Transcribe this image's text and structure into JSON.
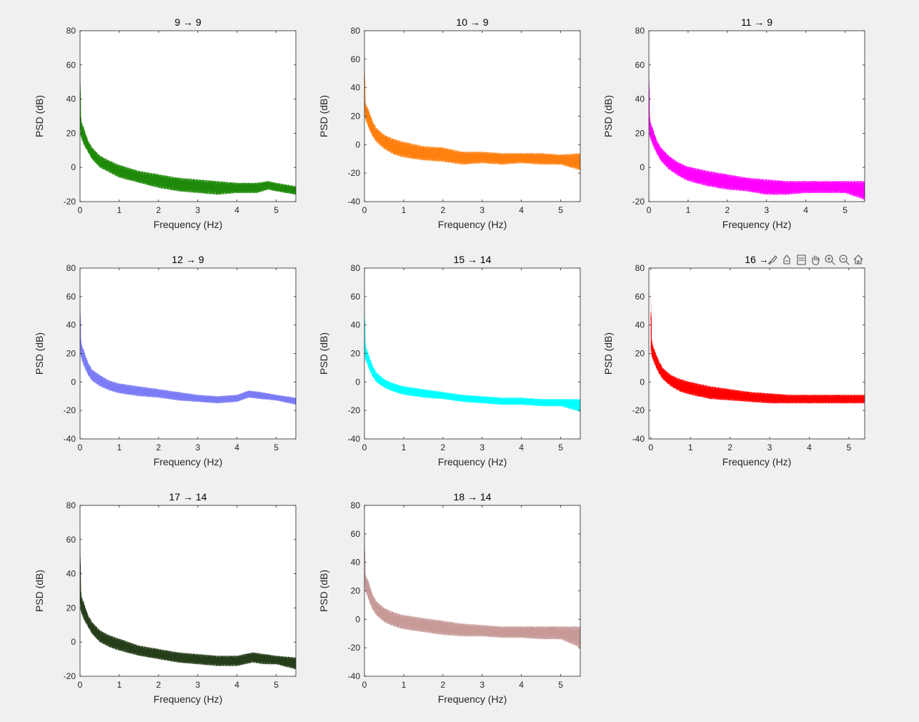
{
  "figure": {
    "background": "#f0f0f0",
    "axes_color": "#262626",
    "toolbar_icons": [
      "brush-icon",
      "data-tips-icon",
      "legend-icon",
      "pan-hand-icon",
      "zoom-in-icon",
      "zoom-out-icon",
      "home-icon"
    ]
  },
  "chart_data": [
    {
      "type": "line",
      "title": "9 → 9",
      "xlabel": "Frequency (Hz)",
      "ylabel": "PSD (dB)",
      "xlim": [
        0,
        5.5
      ],
      "ylim": [
        -20,
        80
      ],
      "xticks": [
        0,
        1,
        2,
        3,
        4,
        5
      ],
      "yticks": [
        -20,
        0,
        20,
        40,
        60,
        80
      ],
      "color": "#1f8a0a",
      "series": [
        {
          "x": [
            0,
            0.02,
            0.05,
            0.1,
            0.2,
            0.3,
            0.5,
            0.75,
            1.0,
            1.5,
            2.0,
            2.5,
            3.0,
            3.5,
            4.0,
            4.5,
            4.8,
            5.0,
            5.5
          ],
          "upper": [
            66,
            30,
            26,
            23,
            16,
            12,
            7,
            4,
            1.5,
            -2,
            -4,
            -6,
            -7,
            -8,
            -9,
            -9,
            -8,
            -9,
            -11
          ],
          "lower": [
            20,
            18,
            16,
            13,
            9,
            5,
            0,
            -3,
            -6,
            -9,
            -12,
            -14,
            -15,
            -16,
            -15,
            -15,
            -13,
            -14,
            -16
          ]
        }
      ]
    },
    {
      "type": "line",
      "title": "10 → 9",
      "xlabel": "Frequency (Hz)",
      "ylabel": "PSD (dB)",
      "xlim": [
        0,
        5.5
      ],
      "ylim": [
        -40,
        80
      ],
      "xticks": [
        0,
        1,
        2,
        3,
        4,
        5
      ],
      "yticks": [
        -40,
        -20,
        0,
        20,
        40,
        60,
        80
      ],
      "color": "#ff7f0e",
      "series": [
        {
          "x": [
            0,
            0.02,
            0.05,
            0.1,
            0.2,
            0.3,
            0.5,
            0.75,
            1.0,
            1.5,
            2.0,
            2.5,
            3.0,
            3.5,
            4.0,
            4.5,
            5.0,
            5.5
          ],
          "upper": [
            69,
            30,
            28,
            25,
            17,
            12,
            7,
            4,
            2,
            -1,
            -2,
            -5,
            -5,
            -6,
            -6,
            -6,
            -7,
            -6
          ],
          "lower": [
            20,
            18,
            16,
            12,
            6,
            2,
            -3,
            -7,
            -9,
            -11,
            -12,
            -14,
            -13,
            -14,
            -13,
            -14,
            -14,
            -18
          ]
        }
      ]
    },
    {
      "type": "line",
      "title": "11 → 9",
      "xlabel": "Frequency (Hz)",
      "ylabel": "PSD (dB)",
      "xlim": [
        0,
        5.5
      ],
      "ylim": [
        -20,
        80
      ],
      "xticks": [
        0,
        1,
        2,
        3,
        4,
        5
      ],
      "yticks": [
        -20,
        0,
        20,
        40,
        60,
        80
      ],
      "color": "#ff00ff",
      "series": [
        {
          "x": [
            0,
            0.02,
            0.05,
            0.1,
            0.2,
            0.3,
            0.5,
            0.75,
            1.0,
            1.5,
            2.0,
            2.5,
            3.0,
            3.5,
            4.0,
            4.5,
            5.0,
            5.5
          ],
          "upper": [
            68,
            30,
            26,
            23,
            16,
            12,
            7,
            3,
            0.5,
            -2,
            -4,
            -6,
            -7,
            -8,
            -8,
            -8,
            -8,
            -8
          ],
          "lower": [
            20,
            18,
            16,
            13,
            8,
            4,
            -1,
            -5,
            -8,
            -11,
            -13,
            -14,
            -16,
            -16,
            -15,
            -15,
            -15,
            -19
          ]
        }
      ]
    },
    {
      "type": "line",
      "title": "12 → 9",
      "xlabel": "Frequency (Hz)",
      "ylabel": "PSD (dB)",
      "xlim": [
        0,
        5.5
      ],
      "ylim": [
        -40,
        80
      ],
      "xticks": [
        0,
        1,
        2,
        3,
        4,
        5
      ],
      "yticks": [
        -40,
        -20,
        0,
        20,
        40,
        60,
        80
      ],
      "color": "#7b7bf5",
      "series": [
        {
          "x": [
            0,
            0.02,
            0.05,
            0.1,
            0.2,
            0.3,
            0.5,
            0.75,
            1.0,
            1.5,
            2.0,
            2.5,
            3.0,
            3.5,
            4.0,
            4.3,
            4.6,
            5.0,
            5.5
          ],
          "upper": [
            65,
            30,
            26,
            22,
            14,
            9,
            5,
            1,
            -1,
            -3,
            -5,
            -7,
            -9,
            -10,
            -9,
            -6,
            -7,
            -9,
            -11
          ],
          "lower": [
            20,
            18,
            15,
            11,
            5,
            1,
            -3,
            -6,
            -8,
            -10,
            -11,
            -13,
            -14,
            -15,
            -14,
            -11,
            -12,
            -13,
            -16
          ]
        }
      ]
    },
    {
      "type": "line",
      "title": "15 → 14",
      "xlabel": "Frequency (Hz)",
      "ylabel": "PSD (dB)",
      "xlim": [
        0,
        5.5
      ],
      "ylim": [
        -40,
        80
      ],
      "xticks": [
        0,
        1,
        2,
        3,
        4,
        5
      ],
      "yticks": [
        -40,
        -20,
        0,
        20,
        40,
        60,
        80
      ],
      "color": "#00ffff",
      "series": [
        {
          "x": [
            0,
            0.02,
            0.05,
            0.1,
            0.2,
            0.3,
            0.5,
            0.75,
            1.0,
            1.5,
            2.0,
            2.5,
            3.0,
            3.5,
            4.0,
            4.5,
            5.0,
            5.5
          ],
          "upper": [
            63,
            28,
            24,
            20,
            12,
            7,
            2,
            -1,
            -3,
            -5,
            -7,
            -9,
            -10,
            -11,
            -11,
            -12,
            -12,
            -12
          ],
          "lower": [
            18,
            16,
            14,
            10,
            4,
            0,
            -4,
            -7,
            -9,
            -11,
            -12,
            -14,
            -15,
            -16,
            -16,
            -17,
            -17,
            -21
          ]
        }
      ]
    },
    {
      "type": "line",
      "title": "16 →",
      "xlabel": "Frequency (Hz)",
      "ylabel": "PSD (dB)",
      "xlim": [
        -0.05,
        5.4
      ],
      "ylim": [
        -40,
        80
      ],
      "xticks": [
        0,
        1,
        2,
        3,
        4,
        5
      ],
      "yticks": [
        -40,
        -20,
        0,
        20,
        40,
        60,
        80
      ],
      "color": "#ff0000",
      "series": [
        {
          "x": [
            0,
            0.02,
            0.05,
            0.1,
            0.2,
            0.3,
            0.5,
            0.75,
            1.0,
            1.5,
            2.0,
            2.5,
            3.0,
            3.5,
            4.0,
            4.5,
            5.0,
            5.4
          ],
          "upper": [
            67,
            30,
            26,
            22,
            15,
            10,
            5,
            2,
            0,
            -3,
            -5,
            -7,
            -8,
            -9,
            -9,
            -9,
            -9,
            -9
          ],
          "lower": [
            20,
            18,
            16,
            12,
            6,
            2,
            -3,
            -7,
            -9,
            -12,
            -13,
            -14,
            -15,
            -15,
            -15,
            -15,
            -15,
            -15
          ]
        }
      ]
    },
    {
      "type": "line",
      "title": "17 → 14",
      "xlabel": "Frequency (Hz)",
      "ylabel": "PSD (dB)",
      "xlim": [
        0,
        5.5
      ],
      "ylim": [
        -20,
        80
      ],
      "xticks": [
        0,
        1,
        2,
        3,
        4,
        5
      ],
      "yticks": [
        -20,
        0,
        20,
        40,
        60,
        80
      ],
      "color": "#263d1a",
      "series": [
        {
          "x": [
            0,
            0.02,
            0.05,
            0.1,
            0.2,
            0.3,
            0.5,
            0.75,
            1.0,
            1.5,
            2.0,
            2.5,
            3.0,
            3.5,
            4.0,
            4.4,
            4.7,
            5.0,
            5.5
          ],
          "upper": [
            68,
            30,
            26,
            23,
            16,
            12,
            7,
            4,
            2,
            -2,
            -4,
            -6,
            -7,
            -8,
            -8,
            -6,
            -7,
            -8,
            -9
          ],
          "lower": [
            20,
            18,
            16,
            13,
            9,
            5,
            0,
            -3,
            -5,
            -8,
            -10,
            -12,
            -13,
            -14,
            -14,
            -12,
            -13,
            -13,
            -16
          ]
        }
      ]
    },
    {
      "type": "line",
      "title": "18 → 14",
      "xlabel": "Frequency (Hz)",
      "ylabel": "PSD (dB)",
      "xlim": [
        0,
        5.5
      ],
      "ylim": [
        -40,
        80
      ],
      "xticks": [
        0,
        1,
        2,
        3,
        4,
        5
      ],
      "yticks": [
        -40,
        -20,
        0,
        20,
        40,
        60,
        80
      ],
      "color": "#c79a98",
      "series": [
        {
          "x": [
            0,
            0.02,
            0.05,
            0.1,
            0.2,
            0.3,
            0.5,
            0.75,
            1.0,
            1.5,
            2.0,
            2.5,
            3.0,
            3.5,
            4.0,
            4.5,
            5.0,
            5.5
          ],
          "upper": [
            70,
            32,
            30,
            27,
            18,
            13,
            8,
            5,
            3,
            1,
            -1,
            -3,
            -4,
            -5,
            -5,
            -5,
            -5,
            -5
          ],
          "lower": [
            22,
            20,
            18,
            14,
            7,
            3,
            -2,
            -5,
            -7,
            -9,
            -11,
            -12,
            -12,
            -13,
            -13,
            -14,
            -14,
            -20
          ]
        }
      ]
    }
  ]
}
